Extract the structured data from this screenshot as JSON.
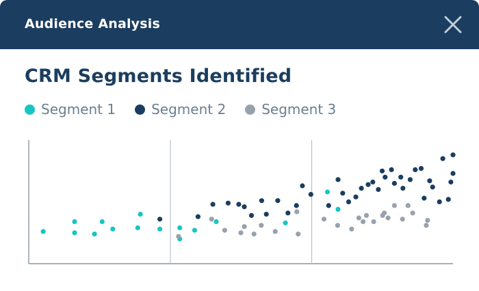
{
  "header": {
    "title": "Audience Analysis",
    "close_icon": "close-icon"
  },
  "colors": {
    "header_bg": "#1b3d5f",
    "heading": "#1b3d5f",
    "legend_text": "#6b7e90",
    "axis": "#8a97a3"
  },
  "main": {
    "heading": "CRM Segments Identified"
  },
  "chart_data": {
    "type": "scatter",
    "title": "",
    "xlabel": "",
    "ylabel": "",
    "grid": false,
    "legend_placement": "top-left",
    "xlim": [
      0,
      100
    ],
    "ylim": [
      0,
      100
    ],
    "panel_dividers_x": [
      33.4,
      66.7
    ],
    "series": [
      {
        "name": "Segment 1",
        "color": "#16c6c3",
        "points": [
          [
            3.4,
            26
          ],
          [
            10.8,
            34
          ],
          [
            10.8,
            25
          ],
          [
            15.5,
            24
          ],
          [
            17.3,
            34
          ],
          [
            19.8,
            28
          ],
          [
            25.7,
            29
          ],
          [
            26.3,
            40
          ],
          [
            30.9,
            28
          ],
          [
            35.6,
            29
          ],
          [
            35.6,
            20
          ],
          [
            39.1,
            27
          ],
          [
            44.2,
            34
          ],
          [
            60.5,
            33
          ],
          [
            70.4,
            58
          ],
          [
            72.9,
            44
          ]
        ]
      },
      {
        "name": "Segment 2",
        "color": "#1b3d5f",
        "points": [
          [
            30.9,
            36
          ],
          [
            39.9,
            38
          ],
          [
            43.4,
            48
          ],
          [
            47.0,
            49
          ],
          [
            49.5,
            48
          ],
          [
            50.8,
            46
          ],
          [
            52.5,
            39
          ],
          [
            54.9,
            51
          ],
          [
            56.0,
            40
          ],
          [
            58.7,
            51
          ],
          [
            61.1,
            41
          ],
          [
            63.1,
            47
          ],
          [
            64.5,
            63
          ],
          [
            66.5,
            56
          ],
          [
            70.7,
            47
          ],
          [
            72.9,
            68
          ],
          [
            74.0,
            57
          ],
          [
            75.4,
            50
          ],
          [
            77.1,
            54
          ],
          [
            78.4,
            61
          ],
          [
            80.0,
            64
          ],
          [
            81.1,
            66
          ],
          [
            82.4,
            60
          ],
          [
            83.3,
            75
          ],
          [
            84.0,
            70
          ],
          [
            85.5,
            76
          ],
          [
            86.2,
            65
          ],
          [
            87.7,
            70
          ],
          [
            88.2,
            61
          ],
          [
            89.9,
            68
          ],
          [
            91.1,
            76
          ],
          [
            92.5,
            77
          ],
          [
            93.2,
            53
          ],
          [
            94.5,
            67
          ],
          [
            95.2,
            62
          ],
          [
            96.8,
            50
          ],
          [
            97.6,
            85
          ],
          [
            98.9,
            52
          ],
          [
            99.5,
            66
          ],
          [
            100.0,
            73
          ],
          [
            100.0,
            88
          ]
        ]
      },
      {
        "name": "Segment 3",
        "color": "#98a2ad",
        "points": [
          [
            35.3,
            22
          ],
          [
            43.1,
            36
          ],
          [
            46.2,
            27
          ],
          [
            50.0,
            25
          ],
          [
            50.8,
            30
          ],
          [
            53.1,
            24
          ],
          [
            54.8,
            31
          ],
          [
            58.1,
            26
          ],
          [
            63.2,
            42
          ],
          [
            63.5,
            24
          ],
          [
            69.6,
            36
          ],
          [
            72.8,
            31
          ],
          [
            76.1,
            28
          ],
          [
            77.8,
            37
          ],
          [
            78.8,
            34
          ],
          [
            79.6,
            39
          ],
          [
            81.3,
            34
          ],
          [
            83.4,
            39
          ],
          [
            83.8,
            41
          ],
          [
            84.7,
            37
          ],
          [
            86.2,
            47
          ],
          [
            88.1,
            36
          ],
          [
            89.4,
            47
          ],
          [
            90.5,
            41
          ],
          [
            93.7,
            31
          ],
          [
            94.0,
            35
          ]
        ]
      }
    ]
  }
}
